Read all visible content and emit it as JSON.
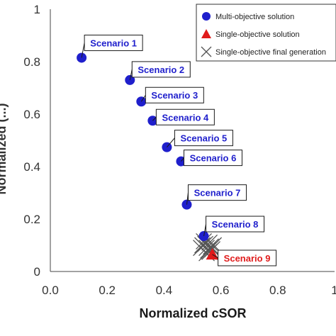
{
  "chart_data": {
    "type": "scatter",
    "title": "",
    "xlabel": "Normalized cSOR",
    "ylabel": "Normalized (...)",
    "xlim": [
      0,
      1
    ],
    "ylim": [
      0,
      1
    ],
    "x_ticks": [
      "0.0",
      "0.2",
      "0.4",
      "0.6",
      "0.8",
      "1"
    ],
    "y_ticks": [
      "0",
      "0.2",
      "0.4",
      "0.6",
      "0.8",
      "1"
    ],
    "grid": false,
    "legend_position": "top-right",
    "legend": [
      {
        "label": "Multi-objective solution",
        "marker": "circle",
        "color": "#1f1fcc"
      },
      {
        "label": "Single-objective solution",
        "marker": "triangle",
        "color": "#e01b1b"
      },
      {
        "label": "Single-objective final generation",
        "marker": "x",
        "color": "#555555"
      }
    ],
    "series": [
      {
        "name": "Multi-objective solution",
        "marker": "circle",
        "color": "#1f1fcc",
        "points": [
          {
            "x": 0.11,
            "y": 0.815,
            "label": "Scenario 1"
          },
          {
            "x": 0.28,
            "y": 0.73,
            "label": "Scenario 2"
          },
          {
            "x": 0.32,
            "y": 0.648,
            "label": "Scenario 3"
          },
          {
            "x": 0.36,
            "y": 0.575,
            "label": "Scenario 4"
          },
          {
            "x": 0.41,
            "y": 0.474,
            "label": "Scenario 5"
          },
          {
            "x": 0.46,
            "y": 0.42,
            "label": "Scenario 6"
          },
          {
            "x": 0.48,
            "y": 0.255,
            "label": "Scenario 7"
          },
          {
            "x": 0.54,
            "y": 0.135,
            "label": "Scenario 8"
          }
        ]
      },
      {
        "name": "Single-objective solution",
        "marker": "triangle",
        "color": "#e01b1b",
        "points": [
          {
            "x": 0.57,
            "y": 0.065,
            "label": "Scenario 9"
          }
        ]
      },
      {
        "name": "Single-objective final generation",
        "marker": "x",
        "color": "#555555",
        "points": [
          {
            "x": 0.53,
            "y": 0.09
          },
          {
            "x": 0.545,
            "y": 0.105
          },
          {
            "x": 0.555,
            "y": 0.08
          },
          {
            "x": 0.56,
            "y": 0.11
          },
          {
            "x": 0.565,
            "y": 0.095
          },
          {
            "x": 0.55,
            "y": 0.07
          },
          {
            "x": 0.54,
            "y": 0.115
          },
          {
            "x": 0.57,
            "y": 0.085
          },
          {
            "x": 0.535,
            "y": 0.1
          },
          {
            "x": 0.575,
            "y": 0.1
          },
          {
            "x": 0.55,
            "y": 0.09
          },
          {
            "x": 0.56,
            "y": 0.075
          }
        ]
      }
    ]
  }
}
